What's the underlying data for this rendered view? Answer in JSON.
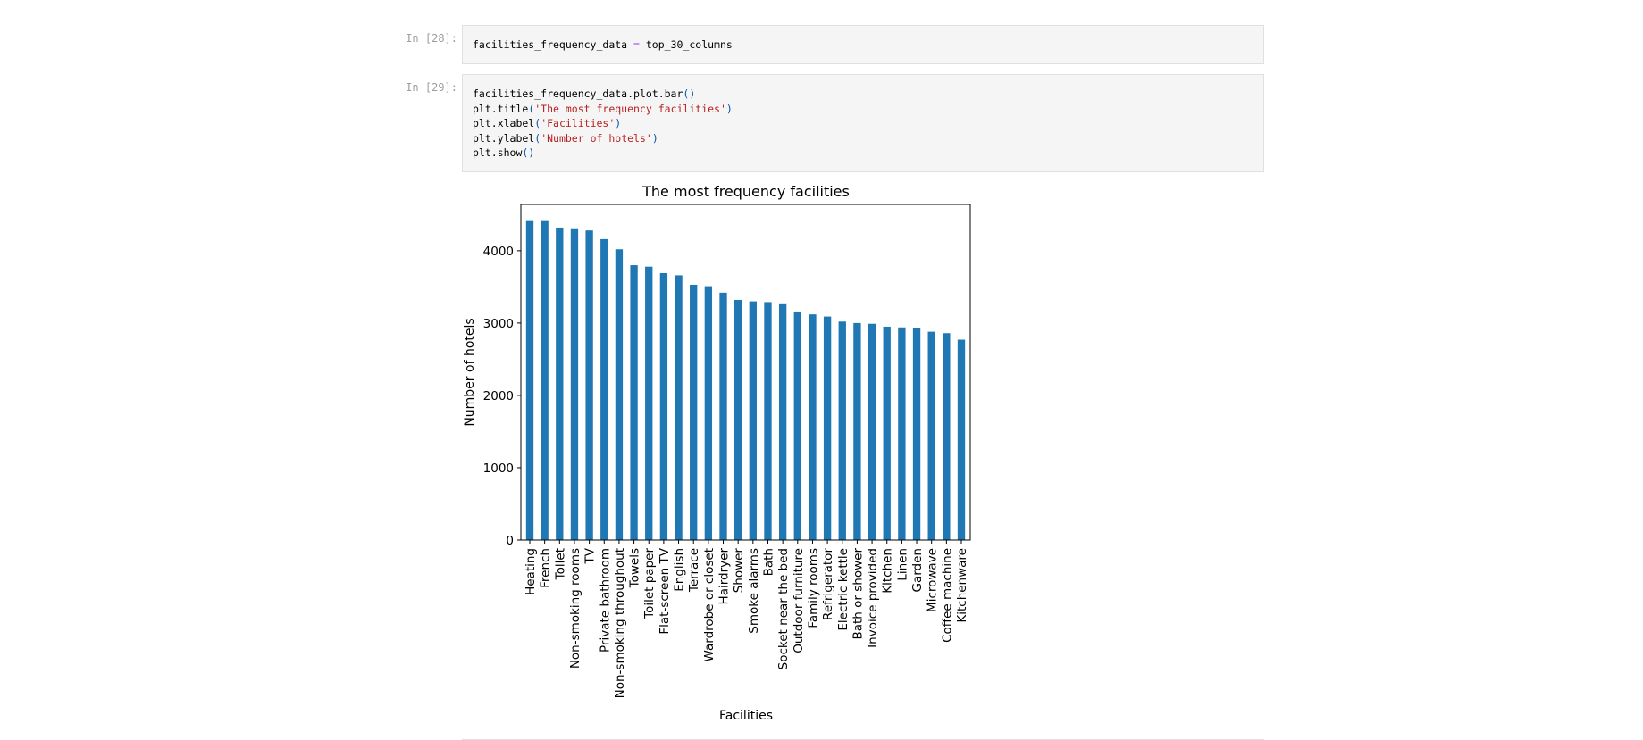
{
  "cells": [
    {
      "prompt": "In [28]:",
      "code_lines": [
        [
          {
            "t": "facilities_frequency_data "
          },
          {
            "t": "=",
            "c": "op"
          },
          {
            "t": " top_30_columns"
          }
        ]
      ]
    },
    {
      "prompt": "In [29]:",
      "code_lines": [
        [
          {
            "t": "facilities_frequency_data.plot.bar"
          },
          {
            "t": "()",
            "c": "paren"
          }
        ],
        [
          {
            "t": "plt.title"
          },
          {
            "t": "(",
            "c": "paren"
          },
          {
            "t": "'The most frequency facilities'",
            "c": "str"
          },
          {
            "t": ")",
            "c": "paren"
          }
        ],
        [
          {
            "t": "plt.xlabel"
          },
          {
            "t": "(",
            "c": "paren"
          },
          {
            "t": "'Facilities'",
            "c": "str"
          },
          {
            "t": ")",
            "c": "paren"
          }
        ],
        [
          {
            "t": "plt.ylabel"
          },
          {
            "t": "(",
            "c": "paren"
          },
          {
            "t": "'Number of hotels'",
            "c": "str"
          },
          {
            "t": ")",
            "c": "paren"
          }
        ],
        [
          {
            "t": "plt.show"
          },
          {
            "t": "()",
            "c": "paren"
          }
        ]
      ]
    }
  ],
  "chart_data": {
    "type": "bar",
    "title": "The most frequency facilities",
    "xlabel": "Facilities",
    "ylabel": "Number of hotels",
    "ylim": [
      0,
      4640
    ],
    "yticks": [
      0,
      1000,
      2000,
      3000,
      4000
    ],
    "grid": false,
    "bar_color": "#1f77b4",
    "categories": [
      "Heating",
      "French",
      "Toilet",
      "Non-smoking rooms",
      "TV",
      "Private bathroom",
      "Non-smoking throughout",
      "Towels",
      "Toilet paper",
      "Flat-screen TV",
      "English",
      "Terrace",
      "Wardrobe or closet",
      "Hairdryer",
      "Shower",
      "Smoke alarms",
      "Bath",
      "Socket near the bed",
      "Outdoor furniture",
      "Family rooms",
      "Refrigerator",
      "Electric kettle",
      "Bath or shower",
      "Invoice provided",
      "Kitchen",
      "Linen",
      "Garden",
      "Microwave",
      "Coffee machine",
      "Kitchenware"
    ],
    "values": [
      4410,
      4410,
      4320,
      4310,
      4280,
      4160,
      4020,
      3800,
      3780,
      3690,
      3660,
      3530,
      3510,
      3420,
      3320,
      3300,
      3290,
      3260,
      3160,
      3120,
      3090,
      3020,
      3000,
      2990,
      2950,
      2940,
      2930,
      2880,
      2860,
      2770
    ]
  }
}
